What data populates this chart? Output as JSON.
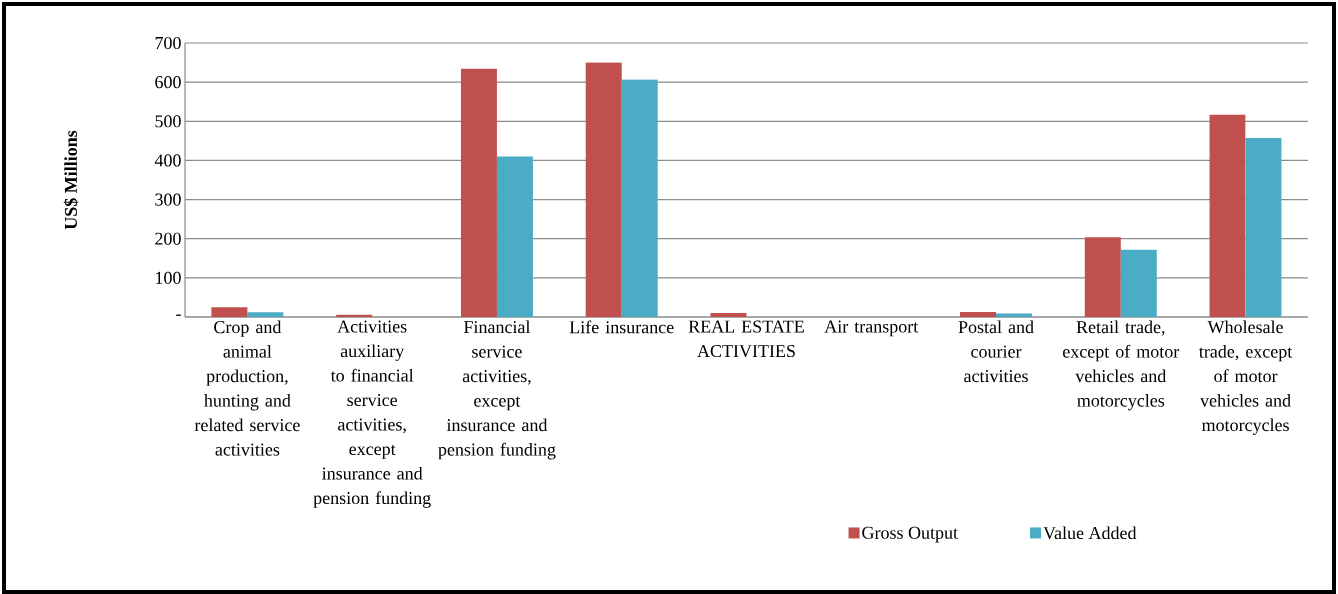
{
  "chart_data": {
    "type": "bar",
    "ylabel": "US$ Millions",
    "categories": [
      "Crop and animal production, hunting and related service activities",
      "Activities auxiliary to financial service activities, except insurance and pension funding",
      "Financial service activities, except insurance and pension funding",
      "Life insurance",
      "REAL ESTATE ACTIVITIES",
      "Air transport",
      "Postal and courier activities",
      "Retail trade, except of motor vehicles and motorcycles",
      "Wholesale trade, except of motor vehicles and motorcycles"
    ],
    "series": [
      {
        "name": "Gross Output",
        "color": "#c0504d",
        "values": [
          25,
          6,
          634,
          650,
          10,
          0,
          13,
          204,
          517
        ]
      },
      {
        "name": "Value Added",
        "color": "#4bacc6",
        "values": [
          12,
          0,
          410,
          607,
          0,
          0,
          9,
          172,
          457
        ]
      }
    ],
    "ylim": [
      0,
      700
    ],
    "yticks": [
      {
        "value": 0,
        "label": "-"
      },
      100,
      200,
      300,
      400,
      500,
      600,
      700
    ],
    "grid": "y",
    "legend": "bottom"
  }
}
